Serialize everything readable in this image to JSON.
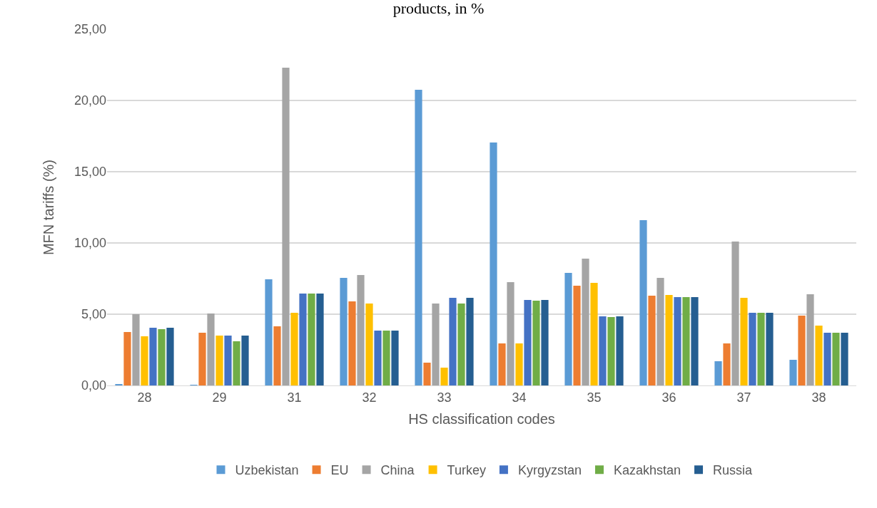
{
  "chart_data": {
    "type": "bar",
    "title": "products, in %",
    "xlabel": "HS classification codes",
    "ylabel": "MFN tariffs (%)",
    "categories": [
      "28",
      "29",
      "31",
      "32",
      "33",
      "34",
      "35",
      "36",
      "37",
      "38"
    ],
    "series": [
      {
        "name": "Uzbekistan",
        "color": "#5b9bd5",
        "values": [
          0.1,
          0.05,
          7.45,
          7.55,
          20.75,
          17.05,
          7.9,
          11.6,
          1.7,
          1.8
        ]
      },
      {
        "name": "EU",
        "color": "#ed7d31",
        "values": [
          3.75,
          3.7,
          4.15,
          5.9,
          1.6,
          2.95,
          7.0,
          6.3,
          2.95,
          4.9
        ]
      },
      {
        "name": "China",
        "color": "#a5a5a5",
        "values": [
          5.0,
          5.05,
          22.3,
          7.75,
          5.75,
          7.25,
          8.9,
          7.55,
          10.1,
          6.4
        ]
      },
      {
        "name": "Turkey",
        "color": "#ffc000",
        "values": [
          3.45,
          3.5,
          5.1,
          5.75,
          1.25,
          2.95,
          7.2,
          6.35,
          6.15,
          4.2
        ]
      },
      {
        "name": "Kyrgyzstan",
        "color": "#4472c4",
        "values": [
          4.05,
          3.5,
          6.45,
          3.85,
          6.15,
          6.0,
          4.85,
          6.2,
          5.1,
          3.7
        ]
      },
      {
        "name": "Kazakhstan",
        "color": "#70ad47",
        "values": [
          3.95,
          3.1,
          6.45,
          3.85,
          5.75,
          5.95,
          4.8,
          6.2,
          5.1,
          3.7
        ]
      },
      {
        "name": "Russia",
        "color": "#255e91",
        "values": [
          4.05,
          3.5,
          6.45,
          3.85,
          6.15,
          6.0,
          4.85,
          6.2,
          5.1,
          3.7
        ]
      }
    ],
    "ylim": [
      0,
      25
    ],
    "yticks": [
      {
        "value": 0,
        "label": "0,00"
      },
      {
        "value": 5,
        "label": "5,00"
      },
      {
        "value": 10,
        "label": "10,00"
      },
      {
        "value": 15,
        "label": "15,00"
      },
      {
        "value": 20,
        "label": "20,00"
      },
      {
        "value": 25,
        "label": "25,00"
      }
    ],
    "grid": "y",
    "legend": "bottom"
  }
}
